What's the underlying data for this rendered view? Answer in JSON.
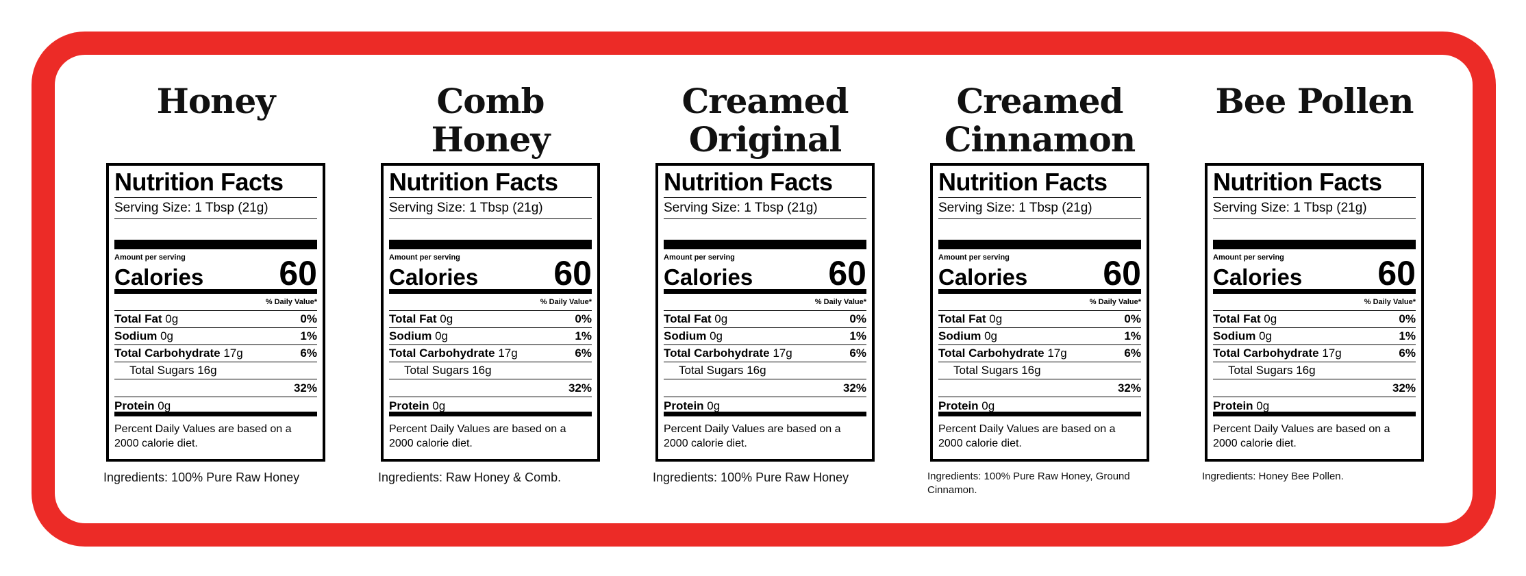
{
  "products": [
    {
      "title_lines": [
        "Honey",
        ""
      ],
      "nutrition_title": "Nutrition Facts",
      "serving": "Serving Size: 1 Tbsp (21g)",
      "amount_label": "Amount per serving",
      "calories_label": "Calories",
      "calories_value": "60",
      "dv_header": "% Daily Value*",
      "fat_label": "Total Fat",
      "fat_amount": " 0g",
      "fat_pct": "0%",
      "sodium_label": "Sodium",
      "sodium_amount": " 0g",
      "sodium_pct": "1%",
      "carb_label": "Total Carbohydrate",
      "carb_amount": " 17g",
      "carb_pct": "6%",
      "sugars_label": "Total Sugars 16g",
      "sugars_pct": "32%",
      "protein_label": "Protein",
      "protein_amount": " 0g",
      "footnote": "Percent Daily Values are based on a 2000 calorie diet.",
      "ingredients": "Ingredients: 100% Pure Raw Honey"
    },
    {
      "title_lines": [
        "Comb",
        "Honey"
      ],
      "nutrition_title": "Nutrition Facts",
      "serving": "Serving Size: 1 Tbsp (21g)",
      "amount_label": "Amount per serving",
      "calories_label": "Calories",
      "calories_value": "60",
      "dv_header": "% Daily Value*",
      "fat_label": "Total Fat",
      "fat_amount": " 0g",
      "fat_pct": "0%",
      "sodium_label": "Sodium",
      "sodium_amount": " 0g",
      "sodium_pct": "1%",
      "carb_label": "Total Carbohydrate",
      "carb_amount": " 17g",
      "carb_pct": "6%",
      "sugars_label": "Total Sugars 16g",
      "sugars_pct": "32%",
      "protein_label": "Protein",
      "protein_amount": " 0g",
      "footnote": "Percent Daily Values are based on a 2000 calorie diet.",
      "ingredients": "Ingredients: Raw Honey & Comb."
    },
    {
      "title_lines": [
        "Creamed",
        "Original"
      ],
      "nutrition_title": "Nutrition Facts",
      "serving": "Serving Size: 1 Tbsp (21g)",
      "amount_label": "Amount per serving",
      "calories_label": "Calories",
      "calories_value": "60",
      "dv_header": "% Daily Value*",
      "fat_label": "Total Fat",
      "fat_amount": " 0g",
      "fat_pct": "0%",
      "sodium_label": "Sodium",
      "sodium_amount": " 0g",
      "sodium_pct": "1%",
      "carb_label": "Total Carbohydrate",
      "carb_amount": " 17g",
      "carb_pct": "6%",
      "sugars_label": "Total Sugars 16g",
      "sugars_pct": "32%",
      "protein_label": "Protein",
      "protein_amount": " 0g",
      "footnote": "Percent Daily Values are based on a 2000 calorie diet.",
      "ingredients": "Ingredients: 100% Pure Raw Honey"
    },
    {
      "title_lines": [
        "Creamed",
        "Cinnamon"
      ],
      "nutrition_title": "Nutrition Facts",
      "serving": "Serving Size: 1 Tbsp (21g)",
      "amount_label": "Amount per serving",
      "calories_label": "Calories",
      "calories_value": "60",
      "dv_header": "% Daily Value*",
      "fat_label": "Total Fat",
      "fat_amount": " 0g",
      "fat_pct": "0%",
      "sodium_label": "Sodium",
      "sodium_amount": " 0g",
      "sodium_pct": "1%",
      "carb_label": "Total Carbohydrate",
      "carb_amount": " 17g",
      "carb_pct": "6%",
      "sugars_label": "Total Sugars 16g",
      "sugars_pct": "32%",
      "protein_label": "Protein",
      "protein_amount": " 0g",
      "footnote": "Percent Daily Values are based on a 2000 calorie diet.",
      "ingredients": "Ingredients: 100% Pure Raw Honey, Ground Cinnamon."
    },
    {
      "title_lines": [
        "Bee Pollen",
        ""
      ],
      "nutrition_title": "Nutrition Facts",
      "serving": "Serving Size: 1 Tbsp (21g)",
      "amount_label": "Amount per serving",
      "calories_label": "Calories",
      "calories_value": "60",
      "dv_header": "% Daily Value*",
      "fat_label": "Total Fat",
      "fat_amount": " 0g",
      "fat_pct": "0%",
      "sodium_label": "Sodium",
      "sodium_amount": " 0g",
      "sodium_pct": "1%",
      "carb_label": "Total Carbohydrate",
      "carb_amount": " 17g",
      "carb_pct": "6%",
      "sugars_label": "Total Sugars 16g",
      "sugars_pct": "32%",
      "protein_label": "Protein",
      "protein_amount": " 0g",
      "footnote": "Percent Daily Values are based on a 2000 calorie diet.",
      "ingredients": "Ingredients: Honey Bee Pollen."
    }
  ],
  "colors": {
    "frame_red": "#ec2b27",
    "text_black": "#000000",
    "background": "#ffffff"
  }
}
